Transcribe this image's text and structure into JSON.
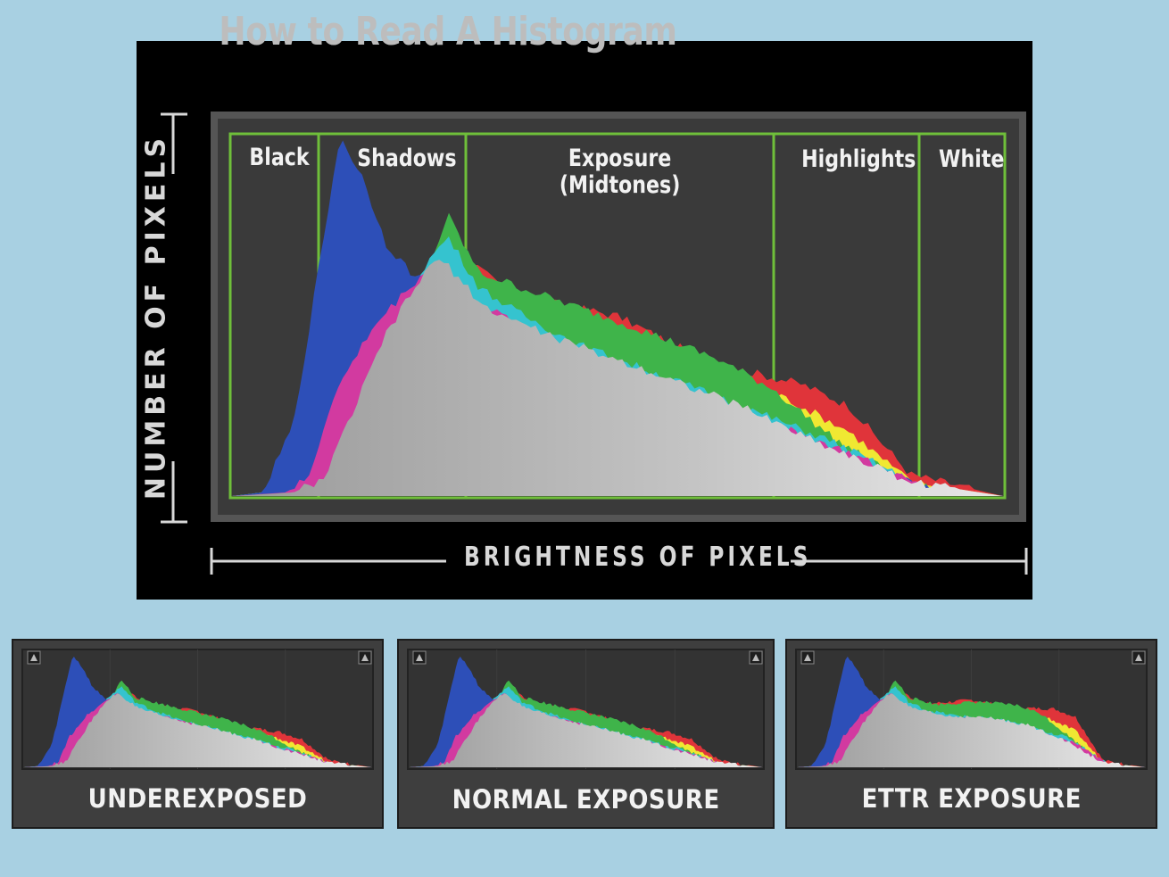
{
  "title": "How to Read A Histogram",
  "y_axis_label": "NUMBER OF PIXELS",
  "x_axis_label": "BRIGHTNESS OF PIXELS",
  "zones": [
    {
      "label": "Black"
    },
    {
      "label": "Shadows"
    },
    {
      "label": "Exposure\n(Midtones)"
    },
    {
      "label": "Highlights"
    },
    {
      "label": "White"
    }
  ],
  "examples": [
    {
      "caption": "UNDEREXPOSED"
    },
    {
      "caption": "NORMAL EXPOSURE"
    },
    {
      "caption": "ETTR EXPOSURE"
    }
  ],
  "colors": {
    "background": "#a8d0e2",
    "panel": "#000000",
    "plot": "#3a3a3a",
    "zone_border": "#6fbf3a",
    "blue": "#2d4fb8",
    "magenta": "#d23aa0",
    "cyan": "#35c3cf",
    "green": "#3fb44a",
    "yellow": "#f0e832",
    "red": "#e0343a",
    "gray": "#bdbdbd"
  }
}
